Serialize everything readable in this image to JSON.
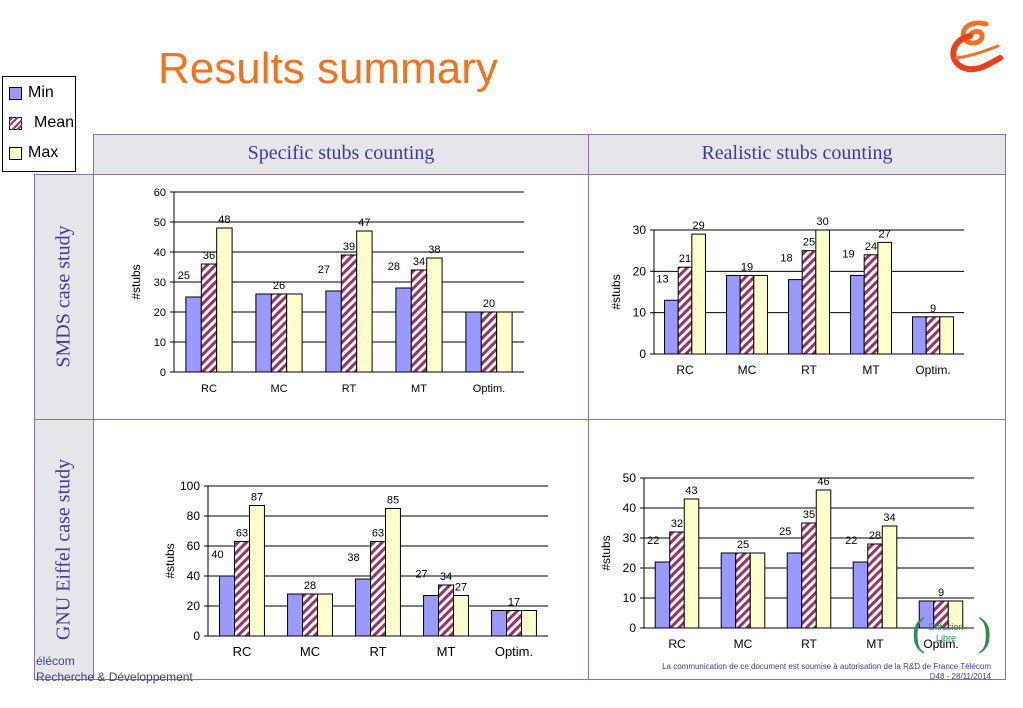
{
  "title": "Results summary",
  "legend": [
    {
      "label": "Min",
      "color": "#9999ff",
      "pattern": "solid"
    },
    {
      "label": "Mean",
      "color": "#993366",
      "pattern": "hatch"
    },
    {
      "label": "Max",
      "color": "#ffffcc",
      "pattern": "solid"
    }
  ],
  "columns": [
    "Specific stubs counting",
    "Realistic stubs counting"
  ],
  "rows": [
    "SMDS case study",
    "GNU Eiffel case study"
  ],
  "footer": {
    "left_line1": "élécom",
    "left_line2": "Recherche & Développement",
    "right_line1": "La communication de ce document est soumise à autorisation de la R&D de France Télécom",
    "right_line2": "D48 - 28/11/2014",
    "badge_line1": "Diffusion",
    "badge_line2": "Libre"
  },
  "chart_data": [
    {
      "type": "bar",
      "ylabel": "#stubs",
      "ylim": [
        0,
        60
      ],
      "yticks": [
        0,
        10,
        20,
        30,
        40,
        50,
        60
      ],
      "categories": [
        "RC",
        "MC",
        "RT",
        "MT",
        "Optim."
      ],
      "series": [
        {
          "name": "Min",
          "values": [
            25,
            26,
            27,
            28,
            20
          ]
        },
        {
          "name": "Mean",
          "values": [
            36,
            26,
            39,
            34,
            20
          ]
        },
        {
          "name": "Max",
          "values": [
            48,
            26,
            47,
            38,
            20
          ]
        }
      ],
      "data_labels": [
        [
          "25",
          "36",
          "48"
        ],
        [
          "",
          "26",
          ""
        ],
        [
          "27",
          "39",
          "47"
        ],
        [
          "28",
          "34",
          "38"
        ],
        [
          "",
          "20",
          ""
        ]
      ]
    },
    {
      "type": "bar",
      "ylabel": "#stubs",
      "ylim": [
        0,
        30
      ],
      "yticks": [
        0,
        10,
        20,
        30
      ],
      "categories": [
        "RC",
        "MC",
        "RT",
        "MT",
        "Optim."
      ],
      "series": [
        {
          "name": "Min",
          "values": [
            13,
            19,
            18,
            19,
            9
          ]
        },
        {
          "name": "Mean",
          "values": [
            21,
            19,
            25,
            24,
            9
          ]
        },
        {
          "name": "Max",
          "values": [
            29,
            19,
            30,
            27,
            9
          ]
        }
      ],
      "data_labels": [
        [
          "13",
          "21",
          "29"
        ],
        [
          "",
          "19",
          ""
        ],
        [
          "18",
          "25",
          "30"
        ],
        [
          "19",
          "24",
          "27"
        ],
        [
          "",
          "9",
          ""
        ]
      ]
    },
    {
      "type": "bar",
      "ylabel": "#stubs",
      "ylim": [
        0,
        100
      ],
      "yticks": [
        0,
        20,
        40,
        60,
        80,
        100
      ],
      "categories": [
        "RC",
        "MC",
        "RT",
        "MT",
        "Optim."
      ],
      "series": [
        {
          "name": "Min",
          "values": [
            40,
            28,
            38,
            27,
            17
          ]
        },
        {
          "name": "Mean",
          "values": [
            63,
            28,
            63,
            34,
            17
          ]
        },
        {
          "name": "Max",
          "values": [
            87,
            28,
            85,
            27,
            17
          ]
        }
      ],
      "data_labels": [
        [
          "40",
          "63",
          "87"
        ],
        [
          "",
          "28",
          ""
        ],
        [
          "38",
          "63",
          "85"
        ],
        [
          "27",
          "34",
          "27"
        ],
        [
          "",
          "17",
          ""
        ]
      ]
    },
    {
      "type": "bar",
      "ylabel": "#stubs",
      "ylim": [
        0,
        50
      ],
      "yticks": [
        0,
        10,
        20,
        30,
        40,
        50
      ],
      "categories": [
        "RC",
        "MC",
        "RT",
        "MT",
        "Optim."
      ],
      "series": [
        {
          "name": "Min",
          "values": [
            22,
            25,
            25,
            22,
            9
          ]
        },
        {
          "name": "Mean",
          "values": [
            32,
            25,
            35,
            28,
            9
          ]
        },
        {
          "name": "Max",
          "values": [
            43,
            25,
            46,
            34,
            9
          ]
        }
      ],
      "data_labels": [
        [
          "22",
          "32",
          "43"
        ],
        [
          "",
          "25",
          ""
        ],
        [
          "25",
          "35",
          "46"
        ],
        [
          "22",
          "28",
          "34"
        ],
        [
          "",
          "9",
          ""
        ]
      ]
    }
  ]
}
